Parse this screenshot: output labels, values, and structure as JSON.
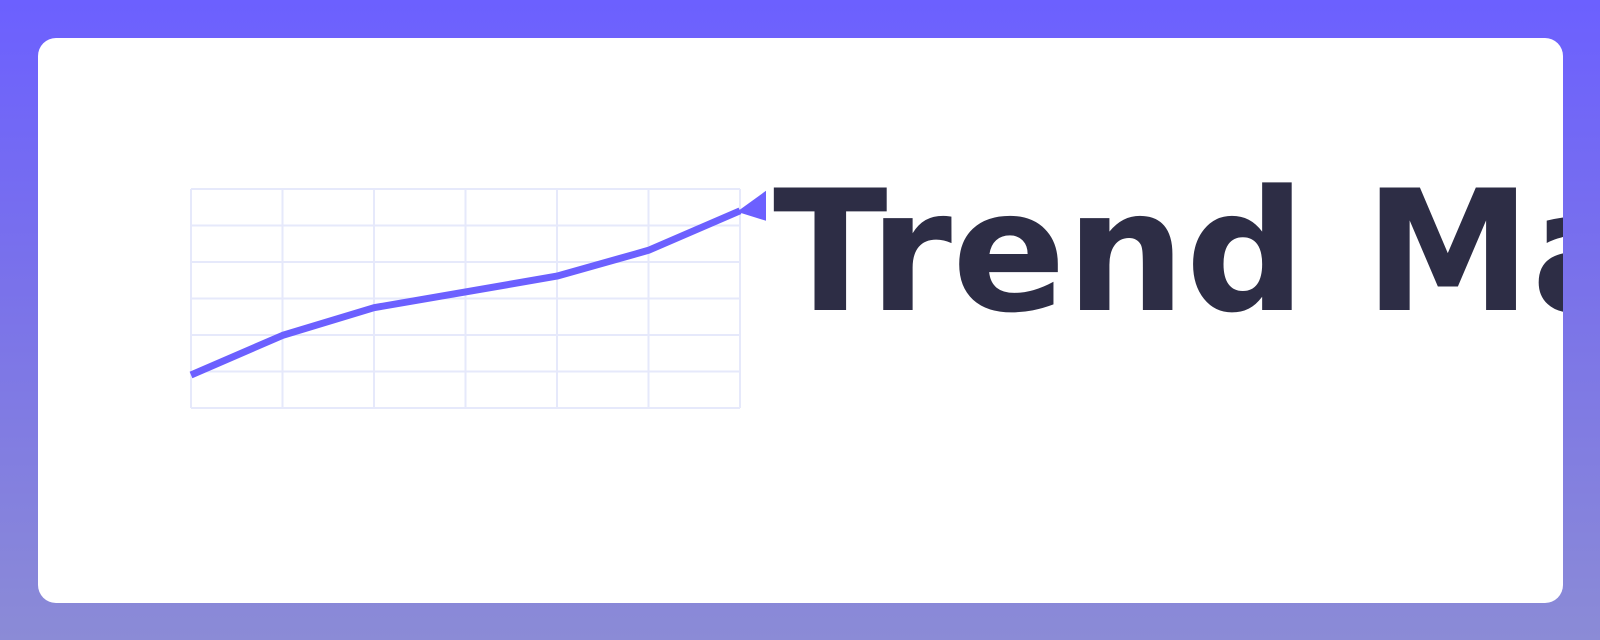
{
  "brand": {
    "name": "Trend Ma",
    "text_color": "#2d2d45",
    "accent_color": "#6c60ff",
    "grid_color": "#e6e9fb"
  },
  "logo": {
    "icon": "rising-trend-line-icon",
    "trend_values": [
      0,
      2,
      3.4,
      4.2,
      5,
      6.3,
      8.3
    ]
  }
}
